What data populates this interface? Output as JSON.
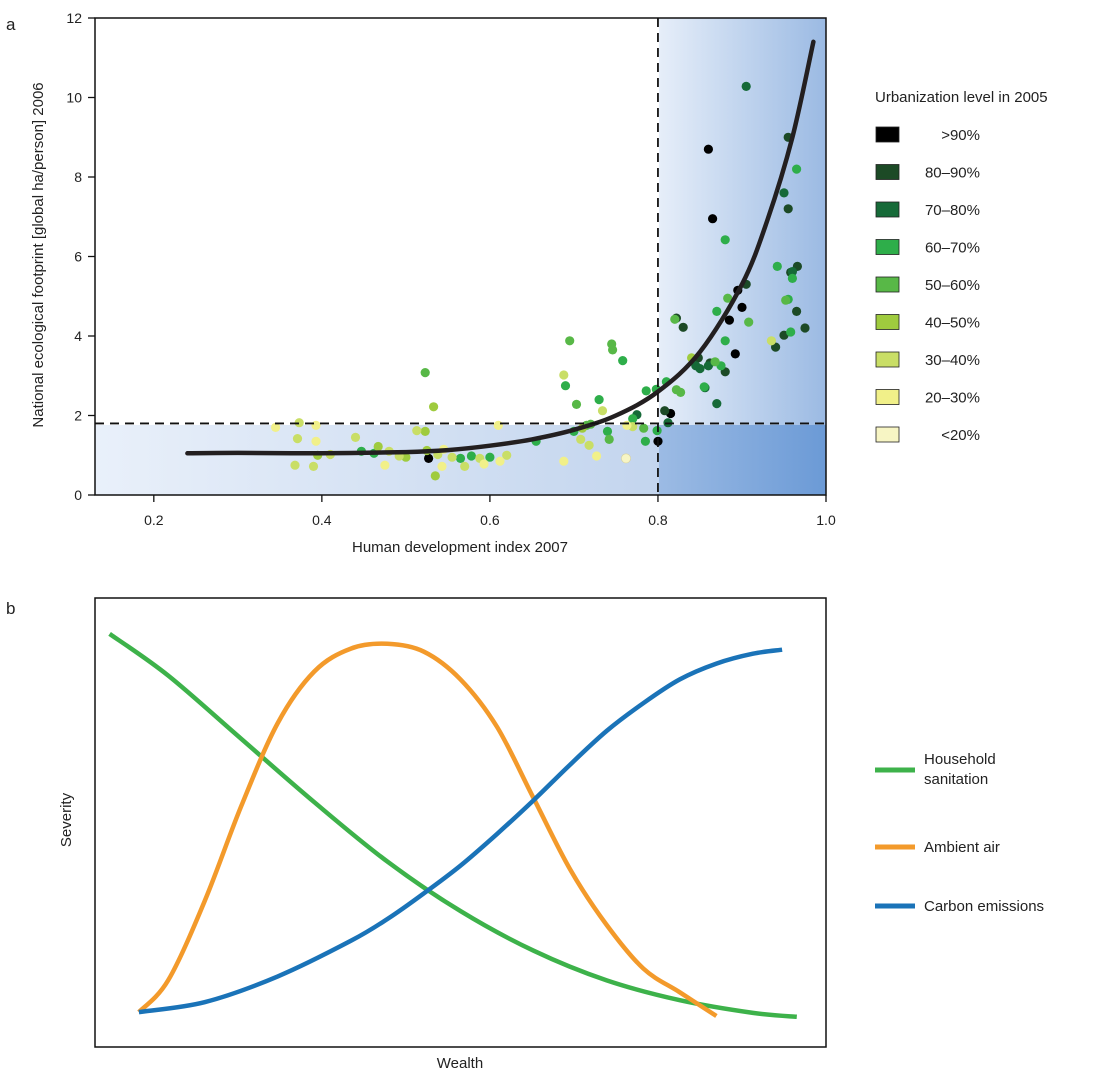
{
  "panel_a": {
    "label": "a",
    "legend_title": "Urbanization level in 2005",
    "legend": [
      {
        "label": ">90%",
        "color": "#000000"
      },
      {
        "label": "80–90%",
        "color": "#1c4a26"
      },
      {
        "label": "70–80%",
        "color": "#166a38"
      },
      {
        "label": "60–70%",
        "color": "#2eae4a"
      },
      {
        "label": "50–60%",
        "color": "#58b847"
      },
      {
        "label": "40–50%",
        "color": "#9fcb3e"
      },
      {
        "label": "30–40%",
        "color": "#c9de66"
      },
      {
        "label": "20–30%",
        "color": "#f1f089"
      },
      {
        "label": "<20%",
        "color": "#f7f5c4"
      }
    ]
  },
  "panel_b": {
    "label": "b",
    "legend": [
      {
        "label": "Household sanitation",
        "lines": [
          "Household",
          "sanitation"
        ],
        "color": "#3db24a"
      },
      {
        "label": "Ambient air",
        "lines": [
          "Ambient air"
        ],
        "color": "#f39a2b"
      },
      {
        "label": "Carbon emissions",
        "lines": [
          "Carbon emissions"
        ],
        "color": "#1a73b8"
      }
    ]
  },
  "chart_data": [
    {
      "type": "scatter",
      "xlabel": "Human development index 2007",
      "ylabel": "National ecological footprint [global ha/person] 2006",
      "xlim": [
        0.13,
        1.0
      ],
      "ylim": [
        0,
        12
      ],
      "xticks": [
        0.2,
        0.4,
        0.6,
        0.8,
        1.0
      ],
      "xtick_labels": [
        "0.2",
        "0.4",
        "0.6",
        "0.8",
        "1.0"
      ],
      "yticks": [
        0,
        2,
        4,
        6,
        8,
        10,
        12
      ],
      "ytick_labels": [
        "0",
        "2",
        "4",
        "6",
        "8",
        "10",
        "12"
      ],
      "thresholds": {
        "x": 0.8,
        "y": 1.8
      },
      "trend": [
        [
          0.24,
          1.05
        ],
        [
          0.3,
          1.06
        ],
        [
          0.4,
          1.05
        ],
        [
          0.5,
          1.08
        ],
        [
          0.55,
          1.13
        ],
        [
          0.6,
          1.24
        ],
        [
          0.65,
          1.4
        ],
        [
          0.7,
          1.64
        ],
        [
          0.75,
          2.0
        ],
        [
          0.8,
          2.6
        ],
        [
          0.85,
          3.6
        ],
        [
          0.9,
          5.3
        ],
        [
          0.93,
          6.9
        ],
        [
          0.96,
          9.0
        ],
        [
          0.985,
          11.4
        ]
      ],
      "series": [
        {
          "name": ">90%",
          "color": "#000000",
          "points": [
            [
              0.86,
              8.7
            ],
            [
              0.865,
              6.95
            ],
            [
              0.895,
              5.15
            ],
            [
              0.9,
              4.72
            ],
            [
              0.885,
              4.4
            ],
            [
              0.892,
              3.55
            ],
            [
              0.815,
              2.05
            ],
            [
              0.8,
              1.35
            ],
            [
              0.527,
              0.92
            ]
          ]
        },
        {
          "name": "80–90%",
          "color": "#1c4a26",
          "points": [
            [
              0.955,
              9.0
            ],
            [
              0.955,
              7.2
            ],
            [
              0.966,
              5.75
            ],
            [
              0.958,
              5.6
            ],
            [
              0.905,
              5.3
            ],
            [
              0.965,
              4.62
            ],
            [
              0.975,
              4.2
            ],
            [
              0.95,
              4.02
            ],
            [
              0.94,
              3.72
            ],
            [
              0.862,
              3.32
            ],
            [
              0.88,
              3.1
            ],
            [
              0.822,
              4.45
            ],
            [
              0.83,
              4.22
            ],
            [
              0.848,
              3.45
            ],
            [
              0.808,
              2.12
            ]
          ]
        },
        {
          "name": "70–80%",
          "color": "#166a38",
          "points": [
            [
              0.905,
              10.28
            ],
            [
              0.95,
              7.6
            ],
            [
              0.96,
              5.62
            ],
            [
              0.86,
              3.25
            ],
            [
              0.85,
              3.18
            ],
            [
              0.87,
              2.3
            ],
            [
              0.775,
              2.02
            ],
            [
              0.812,
              1.82
            ],
            [
              0.845,
              3.25
            ],
            [
              0.856,
              2.7
            ]
          ]
        },
        {
          "name": "60–70%",
          "color": "#2eae4a",
          "points": [
            [
              0.965,
              8.2
            ],
            [
              0.88,
              6.42
            ],
            [
              0.942,
              5.75
            ],
            [
              0.96,
              5.45
            ],
            [
              0.955,
              4.92
            ],
            [
              0.958,
              4.1
            ],
            [
              0.87,
              4.62
            ],
            [
              0.88,
              3.88
            ],
            [
              0.875,
              3.25
            ],
            [
              0.81,
              2.85
            ],
            [
              0.758,
              3.38
            ],
            [
              0.786,
              2.62
            ],
            [
              0.798,
              2.66
            ],
            [
              0.855,
              2.72
            ],
            [
              0.69,
              2.75
            ],
            [
              0.73,
              2.4
            ],
            [
              0.74,
              1.6
            ],
            [
              0.77,
              1.92
            ],
            [
              0.799,
              1.62
            ],
            [
              0.785,
              1.35
            ],
            [
              0.7,
              1.6
            ],
            [
              0.655,
              1.35
            ],
            [
              0.6,
              0.95
            ],
            [
              0.565,
              0.92
            ],
            [
              0.578,
              0.98
            ],
            [
              0.447,
              1.1
            ],
            [
              0.462,
              1.05
            ]
          ]
        },
        {
          "name": "50–60%",
          "color": "#58b847",
          "points": [
            [
              0.952,
              4.9
            ],
            [
              0.883,
              4.95
            ],
            [
              0.908,
              4.35
            ],
            [
              0.82,
              4.42
            ],
            [
              0.868,
              3.35
            ],
            [
              0.822,
              2.65
            ],
            [
              0.746,
              3.65
            ],
            [
              0.695,
              3.88
            ],
            [
              0.703,
              2.28
            ],
            [
              0.715,
              1.75
            ],
            [
              0.742,
              1.4
            ],
            [
              0.745,
              3.8
            ],
            [
              0.523,
              3.08
            ],
            [
              0.72,
              1.78
            ],
            [
              0.783,
              1.68
            ],
            [
              0.827,
              2.58
            ]
          ]
        },
        {
          "name": "40–50%",
          "color": "#9fcb3e",
          "points": [
            [
              0.523,
              1.6
            ],
            [
              0.533,
              2.22
            ],
            [
              0.535,
              0.48
            ],
            [
              0.395,
              1.0
            ],
            [
              0.467,
              1.22
            ],
            [
              0.5,
              0.95
            ],
            [
              0.71,
              1.68
            ],
            [
              0.84,
              3.45
            ],
            [
              0.525,
              1.12
            ]
          ]
        },
        {
          "name": "30–40%",
          "color": "#c9de66",
          "points": [
            [
              0.935,
              3.88
            ],
            [
              0.688,
              3.02
            ],
            [
              0.718,
              1.25
            ],
            [
              0.734,
              2.12
            ],
            [
              0.373,
              1.82
            ],
            [
              0.368,
              0.75
            ],
            [
              0.39,
              0.72
            ],
            [
              0.371,
              1.42
            ],
            [
              0.41,
              1.02
            ],
            [
              0.44,
              1.45
            ],
            [
              0.48,
              1.1
            ],
            [
              0.492,
              0.98
            ],
            [
              0.513,
              1.62
            ],
            [
              0.538,
              1.02
            ],
            [
              0.555,
              0.95
            ],
            [
              0.57,
              0.72
            ],
            [
              0.588,
              0.92
            ],
            [
              0.62,
              1.0
            ],
            [
              0.708,
              1.4
            ],
            [
              0.77,
              1.72
            ]
          ]
        },
        {
          "name": "20–30%",
          "color": "#f1f089",
          "points": [
            [
              0.393,
              1.75
            ],
            [
              0.345,
              1.7
            ],
            [
              0.393,
              1.35
            ],
            [
              0.475,
              0.75
            ],
            [
              0.545,
              1.15
            ],
            [
              0.593,
              0.78
            ],
            [
              0.61,
              1.75
            ],
            [
              0.688,
              0.85
            ],
            [
              0.727,
              0.98
            ],
            [
              0.763,
              1.75
            ],
            [
              0.612,
              0.85
            ],
            [
              0.543,
              0.72
            ]
          ]
        },
        {
          "name": "<20%",
          "color": "#f7f5c4",
          "points": [
            [
              0.762,
              0.92
            ]
          ]
        }
      ]
    },
    {
      "type": "line",
      "xlabel": "Wealth",
      "ylabel": "Severity",
      "xlim": [
        0,
        1
      ],
      "ylim": [
        0,
        1
      ],
      "series": [
        {
          "name": "Household sanitation",
          "color": "#3db24a",
          "points": [
            [
              0.02,
              0.975
            ],
            [
              0.1,
              0.87
            ],
            [
              0.2,
              0.71
            ],
            [
              0.3,
              0.55
            ],
            [
              0.4,
              0.4
            ],
            [
              0.5,
              0.275
            ],
            [
              0.6,
              0.175
            ],
            [
              0.7,
              0.1
            ],
            [
              0.8,
              0.05
            ],
            [
              0.9,
              0.018
            ],
            [
              0.96,
              0.008
            ]
          ]
        },
        {
          "name": "Ambient air",
          "color": "#f39a2b",
          "points": [
            [
              0.06,
              0.02
            ],
            [
              0.1,
              0.1
            ],
            [
              0.15,
              0.3
            ],
            [
              0.2,
              0.54
            ],
            [
              0.25,
              0.75
            ],
            [
              0.3,
              0.88
            ],
            [
              0.35,
              0.938
            ],
            [
              0.4,
              0.95
            ],
            [
              0.45,
              0.93
            ],
            [
              0.5,
              0.86
            ],
            [
              0.55,
              0.74
            ],
            [
              0.6,
              0.56
            ],
            [
              0.65,
              0.38
            ],
            [
              0.7,
              0.24
            ],
            [
              0.75,
              0.13
            ],
            [
              0.8,
              0.07
            ],
            [
              0.85,
              0.01
            ]
          ]
        },
        {
          "name": "Carbon emissions",
          "color": "#1a73b8",
          "points": [
            [
              0.06,
              0.02
            ],
            [
              0.15,
              0.045
            ],
            [
              0.25,
              0.11
            ],
            [
              0.35,
              0.2
            ],
            [
              0.4,
              0.255
            ],
            [
              0.45,
              0.32
            ],
            [
              0.5,
              0.39
            ],
            [
              0.55,
              0.47
            ],
            [
              0.6,
              0.555
            ],
            [
              0.65,
              0.645
            ],
            [
              0.7,
              0.73
            ],
            [
              0.75,
              0.8
            ],
            [
              0.8,
              0.86
            ],
            [
              0.85,
              0.9
            ],
            [
              0.9,
              0.925
            ],
            [
              0.94,
              0.935
            ]
          ]
        }
      ]
    }
  ]
}
